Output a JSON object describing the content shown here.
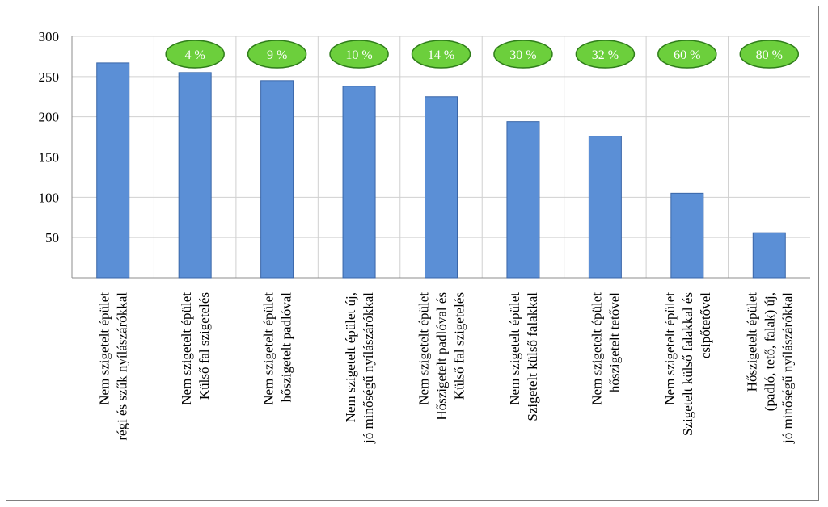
{
  "chart_data": {
    "type": "bar",
    "title": "",
    "xlabel": "",
    "ylabel": "",
    "ylim": [
      0,
      300
    ],
    "y_ticks": [
      50,
      100,
      150,
      200,
      250,
      300
    ],
    "grid": true,
    "colors": {
      "bar": "#5b8fd6",
      "bar_stroke": "#3a66a8",
      "badge_fill": "#6ccf3c",
      "badge_stroke": "#2f7d1a",
      "grid": "#d0d0d0",
      "axis": "#8c8c8c"
    },
    "categories": [
      [
        "Nem szigetelt épület",
        "régi és szűk nyílászárókkal"
      ],
      [
        "Nem szigetelt épület",
        "Külső fal szigetelés"
      ],
      [
        "Nem szigetelt épület",
        "hőszigetelt padlóval"
      ],
      [
        "Nem szigetelt épület új,",
        "jó minőségű nyílászárókkal"
      ],
      [
        "Nem szigetelt épület",
        "Hőszigetelt padlóval és",
        "Külső fal szigetelés"
      ],
      [
        "Nem szigetelt épület",
        "Szigetelt külső falakkal"
      ],
      [
        "Nem szigetelt épület",
        "hőszigetelt tetővel"
      ],
      [
        "Nem szigetelt épület",
        "Szigetelt külső falakkal és",
        "csipőtetővel"
      ],
      [
        "Hőszigetelt épület",
        "(padló, tető, falak) új,",
        "jó minőségű nyílászárókkal"
      ]
    ],
    "values": [
      267,
      255,
      245,
      238,
      225,
      194,
      176,
      105,
      56
    ],
    "savings_labels": [
      "",
      "4 %",
      "9 %",
      "10 %",
      "14 %",
      "30 %",
      "32 %",
      "60 %",
      "80 %"
    ]
  }
}
